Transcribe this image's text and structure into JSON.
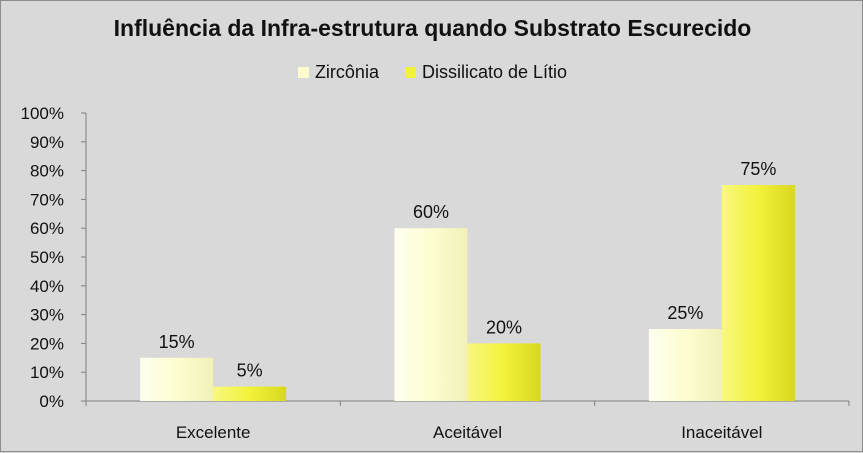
{
  "chart_data": {
    "type": "bar",
    "title": "Influência da Infra-estrutura quando Substrato Escurecido",
    "categories": [
      "Excelente",
      "Aceitável",
      "Inaceitável"
    ],
    "series": [
      {
        "name": "Zircônia",
        "values": [
          15,
          60,
          25
        ],
        "labels": [
          "15%",
          "60%",
          "25%"
        ],
        "color": "#fdfdd0"
      },
      {
        "name": "Dissilicato de Lítio",
        "values": [
          5,
          20,
          75
        ],
        "labels": [
          "5%",
          "20%",
          "75%"
        ],
        "color": "#f2f23a"
      }
    ],
    "ylim": [
      0,
      100
    ],
    "yticks": [
      {
        "value": 0,
        "label": "0%"
      },
      {
        "value": 10,
        "label": "10%"
      },
      {
        "value": 20,
        "label": "20%"
      },
      {
        "value": 30,
        "label": "30%"
      },
      {
        "value": 40,
        "label": "40%"
      },
      {
        "value": 50,
        "label": "50%"
      },
      {
        "value": 60,
        "label": "60%"
      },
      {
        "value": 70,
        "label": "70%"
      },
      {
        "value": 80,
        "label": "80%"
      },
      {
        "value": 90,
        "label": "90%"
      },
      {
        "value": 100,
        "label": "100%"
      }
    ],
    "legend_position": "top",
    "grid": false,
    "background": "#d9d9d9"
  }
}
